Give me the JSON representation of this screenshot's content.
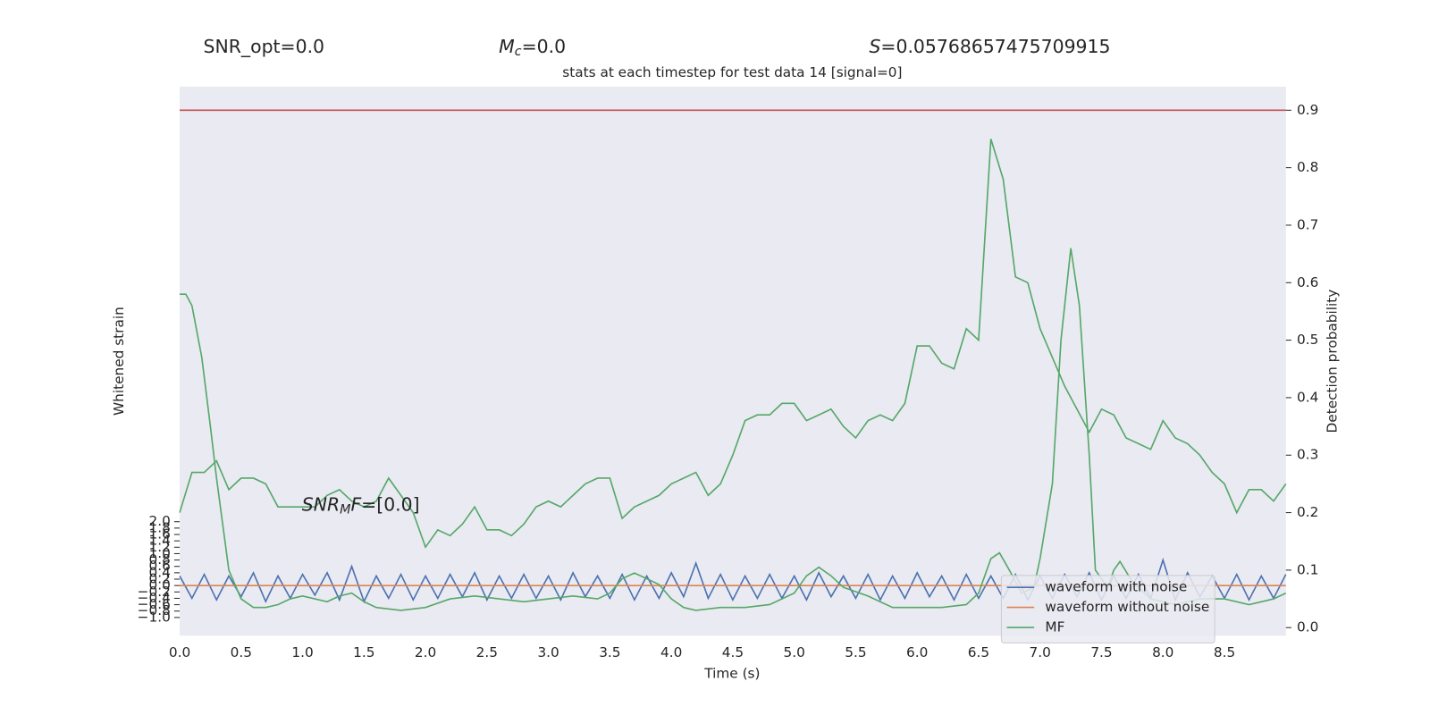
{
  "chart_data": {
    "type": "line",
    "title": "stats at each timestep for test data 14 [signal=0]",
    "annotations": [
      {
        "text": "SNR_opt=0.0"
      },
      {
        "symbol": "M",
        "sub": "c",
        "rest": "=0.0"
      },
      {
        "symbol": "S",
        "rest": "=0.05768657475709915"
      },
      {
        "symbol": "SNR",
        "sub": "M",
        "symbol2": "F",
        "rest": "=[0.0]"
      }
    ],
    "xlabel": "Time (s)",
    "ylabel": "Whitened strain",
    "y2label": "Detection probability",
    "xlim": [
      0,
      9
    ],
    "xticks": [
      {
        "value": 0,
        "label": "0.0"
      },
      0.5,
      {
        "value": 1,
        "label": "1.0"
      },
      1.5,
      {
        "value": 2,
        "label": "2.0"
      },
      2.5,
      {
        "value": 3,
        "label": "3.0"
      },
      3.5,
      {
        "value": 4,
        "label": "4.0"
      },
      4.5,
      {
        "value": 5,
        "label": "5.0"
      },
      5.5,
      {
        "value": 6,
        "label": "6.0"
      },
      6.5,
      {
        "value": 7,
        "label": "7.0"
      },
      7.5,
      {
        "value": 8,
        "label": "8.0"
      },
      8.5
    ],
    "ylim": [
      -1.57,
      15.63
    ],
    "yticks": [
      {
        "value": -1,
        "label": "−1.0"
      },
      {
        "value": -0.8,
        "label": "−0.8"
      },
      {
        "value": -0.6,
        "label": "−0.6"
      },
      {
        "value": -0.4,
        "label": "−0.4"
      },
      {
        "value": -0.2,
        "label": "−0.2"
      },
      {
        "value": 0,
        "label": "0.0"
      },
      0.2,
      0.4,
      0.6,
      0.8,
      {
        "value": 1,
        "label": "1.0"
      },
      1.2,
      1.4,
      1.6,
      1.8,
      {
        "value": 2,
        "label": "2.0"
      }
    ],
    "y2lim": [
      -0.014,
      0.941
    ],
    "y2ticks": [
      {
        "value": 0,
        "label": "0.0"
      },
      0.1,
      0.2,
      0.3,
      0.4,
      0.5,
      0.6,
      0.7,
      0.8,
      0.9
    ],
    "threshold": {
      "value": 0.9,
      "color": "#c44e52",
      "axis": "y2"
    },
    "grid": true,
    "legend": "lower right",
    "x": [
      0,
      0.1,
      0.2,
      0.3,
      0.4,
      0.5,
      0.6,
      0.7,
      0.8,
      0.9,
      1,
      1.1,
      1.2,
      1.3,
      1.4,
      1.5,
      1.6,
      1.7,
      1.8,
      1.9,
      2,
      2.1,
      2.2,
      2.3,
      2.4,
      2.5,
      2.6,
      2.7,
      2.8,
      2.9,
      3,
      3.1,
      3.2,
      3.3,
      3.4,
      3.5,
      3.6,
      3.7,
      3.8,
      3.9,
      4,
      4.1,
      4.2,
      4.3,
      4.4,
      4.5,
      4.6,
      4.7,
      4.8,
      4.9,
      5,
      5.1,
      5.2,
      5.3,
      5.4,
      5.5,
      5.6,
      5.7,
      5.8,
      5.9,
      6,
      6.1,
      6.2,
      6.3,
      6.4,
      6.5,
      6.6,
      6.7,
      6.8,
      6.9,
      7,
      7.1,
      7.2,
      7.3,
      7.4,
      7.5,
      7.6,
      7.7,
      7.8,
      7.9,
      8,
      8.1,
      8.2,
      8.3,
      8.4,
      8.5,
      8.6,
      8.7,
      8.8,
      8.9,
      9
    ],
    "series": [
      {
        "name": "waveform with noise",
        "color": "#4c72b0",
        "axis": "y",
        "values": [
          0.3,
          -0.4,
          0.35,
          -0.45,
          0.3,
          -0.35,
          0.4,
          -0.5,
          0.3,
          -0.4,
          0.35,
          -0.3,
          0.4,
          -0.45,
          0.6,
          -0.5,
          0.3,
          -0.4,
          0.35,
          -0.45,
          0.3,
          -0.4,
          0.35,
          -0.35,
          0.4,
          -0.45,
          0.3,
          -0.4,
          0.35,
          -0.4,
          0.3,
          -0.45,
          0.4,
          -0.35,
          0.3,
          -0.4,
          0.35,
          -0.45,
          0.3,
          -0.4,
          0.4,
          -0.35,
          0.7,
          -0.4,
          0.35,
          -0.45,
          0.3,
          -0.4,
          0.35,
          -0.4,
          0.3,
          -0.45,
          0.4,
          -0.35,
          0.3,
          -0.4,
          0.35,
          -0.45,
          0.3,
          -0.4,
          0.4,
          -0.35,
          0.3,
          -0.45,
          0.35,
          -0.4,
          0.3,
          -0.4,
          0.35,
          -0.45,
          0.3,
          -0.4,
          0.35,
          -0.35,
          0.4,
          -0.45,
          0.3,
          -0.4,
          0.35,
          -0.4,
          0.8,
          -0.45,
          0.4,
          -0.35,
          0.3,
          -0.4,
          0.35,
          -0.45,
          0.3,
          -0.4,
          0.35
        ]
      },
      {
        "name": "waveform without noise",
        "color": "#dd8452",
        "axis": "y",
        "x": [
          0,
          9
        ],
        "values": [
          0,
          0
        ]
      },
      {
        "name": "MF",
        "color": "#55a868",
        "axis": "y2",
        "x": [
          0,
          0.05,
          0.1,
          0.18,
          0.25,
          0.3,
          0.4,
          0.5,
          0.6,
          0.7,
          0.8,
          0.9,
          1.0,
          1.1,
          1.2,
          1.3,
          1.4,
          1.5,
          1.6,
          1.8,
          2.0,
          2.2,
          2.4,
          2.6,
          2.8,
          3.0,
          3.2,
          3.4,
          3.5,
          3.6,
          3.7,
          3.8,
          3.9,
          4.0,
          4.1,
          4.2,
          4.4,
          4.6,
          4.8,
          5.0,
          5.1,
          5.2,
          5.3,
          5.4,
          5.6,
          5.8,
          6.0,
          6.2,
          6.4,
          6.5,
          6.6,
          6.67,
          6.75,
          6.85,
          6.95,
          7.0,
          7.1,
          7.17,
          7.25,
          7.32,
          7.4,
          7.45,
          7.55,
          7.6,
          7.65,
          7.75,
          7.9,
          8.1,
          8.3,
          8.5,
          8.7,
          8.9,
          9.0
        ],
        "values": [
          0.58,
          0.58,
          0.56,
          0.47,
          0.35,
          0.26,
          0.1,
          0.05,
          0.035,
          0.035,
          0.04,
          0.05,
          0.055,
          0.05,
          0.045,
          0.055,
          0.06,
          0.045,
          0.035,
          0.03,
          0.035,
          0.05,
          0.055,
          0.05,
          0.045,
          0.05,
          0.055,
          0.05,
          0.06,
          0.085,
          0.095,
          0.085,
          0.075,
          0.05,
          0.035,
          0.03,
          0.035,
          0.035,
          0.04,
          0.06,
          0.09,
          0.105,
          0.09,
          0.07,
          0.055,
          0.035,
          0.035,
          0.035,
          0.04,
          0.06,
          0.12,
          0.13,
          0.1,
          0.06,
          0.07,
          0.12,
          0.25,
          0.5,
          0.66,
          0.56,
          0.3,
          0.1,
          0.07,
          0.1,
          0.115,
          0.08,
          0.05,
          0.04,
          0.05,
          0.05,
          0.04,
          0.05,
          0.06
        ]
      },
      {
        "color": "#55a868",
        "axis": "y2",
        "values": [
          0.2,
          0.27,
          0.27,
          0.29,
          0.24,
          0.26,
          0.26,
          0.25,
          0.21,
          0.21,
          0.21,
          0.21,
          0.23,
          0.24,
          0.22,
          0.21,
          0.22,
          0.26,
          0.23,
          0.2,
          0.14,
          0.17,
          0.16,
          0.18,
          0.21,
          0.17,
          0.17,
          0.16,
          0.18,
          0.21,
          0.22,
          0.21,
          0.23,
          0.25,
          0.26,
          0.26,
          0.19,
          0.21,
          0.22,
          0.23,
          0.25,
          0.26,
          0.27,
          0.23,
          0.25,
          0.3,
          0.36,
          0.37,
          0.37,
          0.39,
          0.39,
          0.36,
          0.37,
          0.38,
          0.35,
          0.33,
          0.36,
          0.37,
          0.36,
          0.39,
          0.49,
          0.49,
          0.46,
          0.45,
          0.52,
          0.5,
          0.85,
          0.78,
          0.61,
          0.6,
          0.52,
          0.47,
          0.42,
          0.38,
          0.34,
          0.38,
          0.37,
          0.33,
          0.32,
          0.31,
          0.36,
          0.33,
          0.32,
          0.3,
          0.27,
          0.25,
          0.2,
          0.24,
          0.24,
          0.22,
          0.25
        ]
      }
    ]
  }
}
